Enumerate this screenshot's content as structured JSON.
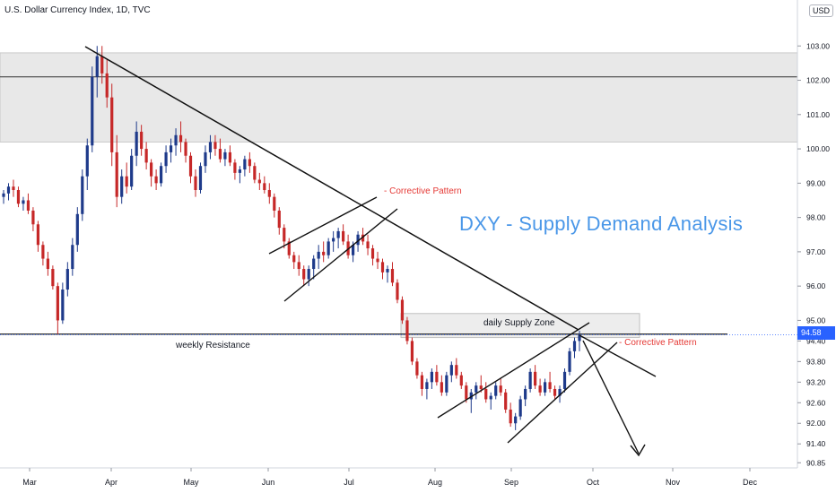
{
  "header": {
    "title": "U.S. Dollar Currency Index, 1D, TVC",
    "currency": "USD"
  },
  "annotations": {
    "main_title": "DXY - Supply Demand Analysis",
    "corrective_pattern_1": "- Corrective Pattern",
    "corrective_pattern_2": "- Corrective Pattern",
    "supply_zone": "daily Supply Zone",
    "weekly_resistance": "weekly Resistance"
  },
  "colors": {
    "bull": "#1e3a8a",
    "bear": "#c62828",
    "price_tag": "#2962ff",
    "zone": "#e8e8e8",
    "accent_title": "#4a97e8",
    "red_text": "#e53935"
  },
  "chart_data": {
    "type": "candlestick",
    "symbol": "U.S. Dollar Currency Index",
    "interval": "1D",
    "source": "TVC",
    "x_tick_labels": [
      "Mar",
      "Apr",
      "May",
      "Jun",
      "Jul",
      "Aug",
      "Sep",
      "Oct",
      "Nov",
      "Dec"
    ],
    "y_tick_labels": [
      "103.00",
      "102.00",
      "101.00",
      "100.00",
      "99.00",
      "98.00",
      "97.00",
      "96.00",
      "95.00",
      "94.40",
      "93.80",
      "93.20",
      "92.60",
      "92.00",
      "91.40",
      "90.85"
    ],
    "last_price": "94.58",
    "ylim": [
      90.7,
      104.0
    ],
    "grid": false,
    "levels": {
      "weekly_resistance": 94.6,
      "resistance_high": 102.1,
      "supply_zone_weekly": [
        100.2,
        102.8
      ],
      "supply_zone_daily": [
        94.5,
        95.2
      ]
    },
    "candles": [
      [
        98.6,
        98.8,
        98.4,
        98.7
      ],
      [
        98.7,
        99.0,
        98.5,
        98.9
      ],
      [
        98.9,
        99.1,
        98.6,
        98.8
      ],
      [
        98.8,
        98.9,
        98.3,
        98.4
      ],
      [
        98.4,
        98.6,
        98.2,
        98.5
      ],
      [
        98.5,
        98.7,
        98.1,
        98.2
      ],
      [
        98.2,
        98.3,
        97.6,
        97.8
      ],
      [
        97.8,
        97.9,
        97.0,
        97.2
      ],
      [
        97.2,
        97.3,
        96.6,
        96.8
      ],
      [
        96.8,
        97.0,
        96.3,
        96.5
      ],
      [
        96.5,
        96.6,
        95.9,
        96.0
      ],
      [
        96.0,
        96.1,
        94.6,
        95.0
      ],
      [
        95.0,
        96.1,
        94.9,
        95.9
      ],
      [
        95.9,
        96.7,
        95.7,
        96.5
      ],
      [
        96.5,
        97.4,
        96.3,
        97.2
      ],
      [
        97.2,
        98.3,
        97.0,
        98.1
      ],
      [
        98.1,
        99.4,
        97.9,
        99.2
      ],
      [
        99.2,
        100.3,
        98.8,
        100.1
      ],
      [
        100.1,
        102.4,
        99.9,
        102.1
      ],
      [
        102.1,
        103.0,
        101.5,
        102.7
      ],
      [
        102.7,
        103.0,
        101.9,
        102.2
      ],
      [
        102.2,
        102.6,
        101.2,
        101.5
      ],
      [
        101.5,
        101.9,
        99.5,
        99.9
      ],
      [
        99.9,
        100.4,
        98.3,
        98.6
      ],
      [
        98.6,
        99.4,
        98.4,
        99.2
      ],
      [
        99.2,
        99.6,
        98.7,
        98.9
      ],
      [
        98.9,
        100.0,
        98.8,
        99.8
      ],
      [
        99.8,
        100.8,
        99.5,
        100.5
      ],
      [
        100.5,
        100.7,
        99.8,
        100.0
      ],
      [
        100.0,
        100.2,
        99.4,
        99.6
      ],
      [
        99.6,
        99.7,
        98.9,
        99.2
      ],
      [
        99.2,
        99.4,
        98.8,
        99.0
      ],
      [
        99.0,
        99.6,
        98.9,
        99.5
      ],
      [
        99.5,
        100.1,
        99.3,
        99.9
      ],
      [
        99.9,
        100.3,
        99.6,
        100.1
      ],
      [
        100.1,
        100.6,
        99.8,
        100.4
      ],
      [
        100.4,
        100.8,
        99.9,
        100.2
      ],
      [
        100.2,
        100.3,
        99.6,
        99.8
      ],
      [
        99.8,
        99.9,
        99.0,
        99.2
      ],
      [
        99.2,
        99.4,
        98.6,
        98.8
      ],
      [
        98.8,
        99.6,
        98.7,
        99.5
      ],
      [
        99.5,
        100.1,
        99.3,
        99.9
      ],
      [
        99.9,
        100.4,
        99.7,
        100.2
      ],
      [
        100.2,
        100.4,
        99.8,
        100.0
      ],
      [
        100.0,
        100.3,
        99.6,
        99.7
      ],
      [
        99.7,
        100.0,
        99.5,
        99.9
      ],
      [
        99.9,
        100.1,
        99.5,
        99.6
      ],
      [
        99.6,
        99.7,
        99.1,
        99.3
      ],
      [
        99.3,
        99.5,
        99.0,
        99.4
      ],
      [
        99.4,
        99.8,
        99.2,
        99.7
      ],
      [
        99.7,
        99.9,
        99.3,
        99.5
      ],
      [
        99.5,
        99.6,
        99.0,
        99.1
      ],
      [
        99.1,
        99.3,
        98.8,
        99.0
      ],
      [
        99.0,
        99.2,
        98.7,
        98.8
      ],
      [
        98.8,
        99.0,
        98.4,
        98.6
      ],
      [
        98.6,
        98.7,
        98.0,
        98.2
      ],
      [
        98.2,
        98.3,
        97.5,
        97.7
      ],
      [
        97.7,
        97.8,
        97.1,
        97.3
      ],
      [
        97.3,
        97.4,
        96.8,
        96.9
      ],
      [
        96.9,
        97.0,
        96.5,
        96.7
      ],
      [
        96.7,
        96.9,
        96.3,
        96.5
      ],
      [
        96.5,
        96.6,
        96.0,
        96.2
      ],
      [
        96.2,
        96.6,
        96.0,
        96.5
      ],
      [
        96.5,
        96.9,
        96.2,
        96.8
      ],
      [
        96.8,
        97.2,
        96.5,
        97.0
      ],
      [
        97.0,
        97.3,
        96.7,
        96.9
      ],
      [
        96.9,
        97.4,
        96.8,
        97.3
      ],
      [
        97.3,
        97.6,
        97.0,
        97.4
      ],
      [
        97.4,
        97.7,
        97.1,
        97.6
      ],
      [
        97.6,
        97.8,
        97.2,
        97.3
      ],
      [
        97.3,
        97.5,
        96.8,
        96.9
      ],
      [
        96.9,
        97.3,
        96.7,
        97.2
      ],
      [
        97.2,
        97.6,
        97.0,
        97.5
      ],
      [
        97.5,
        97.7,
        97.2,
        97.3
      ],
      [
        97.3,
        97.5,
        96.9,
        97.1
      ],
      [
        97.1,
        97.2,
        96.6,
        96.8
      ],
      [
        96.8,
        97.0,
        96.5,
        96.7
      ],
      [
        96.7,
        96.8,
        96.2,
        96.4
      ],
      [
        96.4,
        96.6,
        96.1,
        96.5
      ],
      [
        96.5,
        96.7,
        96.0,
        96.1
      ],
      [
        96.1,
        96.2,
        95.5,
        95.6
      ],
      [
        95.6,
        95.7,
        94.9,
        95.0
      ],
      [
        95.0,
        95.1,
        94.3,
        94.4
      ],
      [
        94.4,
        94.5,
        93.7,
        93.8
      ],
      [
        93.8,
        93.9,
        93.3,
        93.4
      ],
      [
        93.4,
        93.5,
        92.8,
        93.0
      ],
      [
        93.0,
        93.3,
        92.7,
        93.2
      ],
      [
        93.2,
        93.6,
        93.0,
        93.5
      ],
      [
        93.5,
        93.7,
        93.1,
        93.2
      ],
      [
        93.2,
        93.4,
        92.8,
        92.9
      ],
      [
        92.9,
        93.5,
        92.8,
        93.4
      ],
      [
        93.4,
        93.8,
        93.2,
        93.7
      ],
      [
        93.7,
        93.9,
        93.3,
        93.4
      ],
      [
        93.4,
        93.5,
        93.0,
        93.1
      ],
      [
        93.1,
        93.2,
        92.6,
        92.7
      ],
      [
        92.7,
        93.0,
        92.3,
        92.9
      ],
      [
        92.9,
        93.2,
        92.7,
        93.1
      ],
      [
        93.1,
        93.4,
        92.9,
        93.0
      ],
      [
        93.0,
        93.2,
        92.6,
        92.7
      ],
      [
        92.7,
        92.9,
        92.4,
        92.8
      ],
      [
        92.8,
        93.2,
        92.7,
        93.1
      ],
      [
        93.1,
        93.3,
        92.8,
        92.9
      ],
      [
        92.9,
        93.0,
        92.3,
        92.4
      ],
      [
        92.4,
        92.6,
        91.9,
        92.0
      ],
      [
        92.0,
        92.3,
        91.8,
        92.2
      ],
      [
        92.2,
        92.8,
        92.1,
        92.7
      ],
      [
        92.7,
        93.1,
        92.5,
        93.0
      ],
      [
        93.0,
        93.6,
        92.9,
        93.5
      ],
      [
        93.5,
        93.7,
        93.0,
        93.1
      ],
      [
        93.1,
        93.3,
        92.8,
        92.9
      ],
      [
        92.9,
        93.3,
        92.8,
        93.2
      ],
      [
        93.2,
        93.5,
        92.9,
        93.0
      ],
      [
        93.0,
        93.1,
        92.7,
        92.8
      ],
      [
        92.8,
        93.1,
        92.6,
        93.0
      ],
      [
        93.0,
        93.6,
        92.9,
        93.5
      ],
      [
        93.5,
        94.2,
        93.4,
        94.1
      ],
      [
        94.1,
        94.5,
        93.9,
        94.4
      ],
      [
        94.4,
        94.7,
        94.1,
        94.58
      ]
    ]
  }
}
